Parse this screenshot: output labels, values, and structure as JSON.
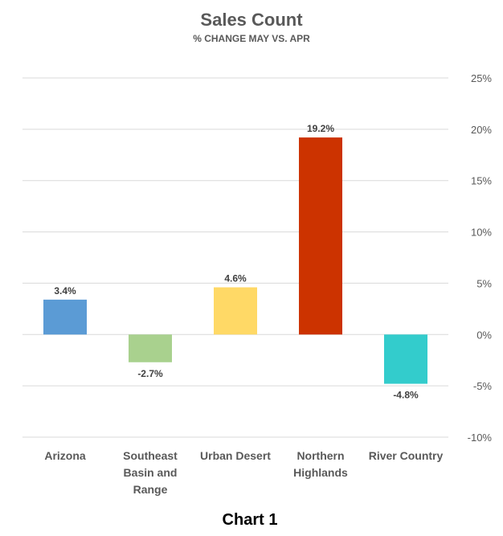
{
  "caption": "Chart 1",
  "chart_data": {
    "type": "bar",
    "title": "Sales Count",
    "subtitle": "% CHANGE MAY VS. APR",
    "categories": [
      [
        "Arizona"
      ],
      [
        "Southeast",
        "Basin and",
        "Range"
      ],
      [
        "Urban Desert"
      ],
      [
        "Northern",
        "Highlands"
      ],
      [
        "River Country"
      ]
    ],
    "values": [
      3.4,
      -2.7,
      4.6,
      19.2,
      -4.8
    ],
    "value_labels": [
      "3.4%",
      "-2.7%",
      "4.6%",
      "19.2%",
      "-4.8%"
    ],
    "colors": [
      "#5b9bd5",
      "#a9d18e",
      "#ffd966",
      "#cc3300",
      "#33cccc"
    ],
    "ylim": [
      -10,
      25
    ],
    "yticks": [
      -10,
      -5,
      0,
      5,
      10,
      15,
      20,
      25
    ],
    "ytick_labels": [
      "-10%",
      "-5%",
      "0%",
      "5%",
      "10%",
      "15%",
      "20%",
      "25%"
    ],
    "y_axis_position": "right",
    "grid": true,
    "xlabel": "",
    "ylabel": ""
  }
}
